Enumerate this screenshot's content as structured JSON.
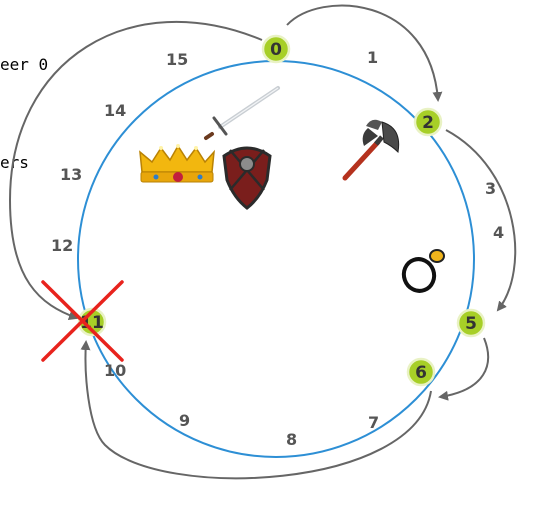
{
  "side_text": {
    "line1": "eer 0",
    "line2": "ers"
  },
  "peers": [
    "0",
    "2",
    "5",
    "6",
    "11"
  ],
  "slots": [
    "1",
    "3",
    "4",
    "7",
    "8",
    "9",
    "10",
    "12",
    "13",
    "14",
    "15"
  ],
  "failed_peer": "11",
  "colors": {
    "ring": "#2d8fd5",
    "peer_fill": "#a7cf27",
    "peer_stroke": "#e9f2c4",
    "arrow": "#666666",
    "cross": "#e8231d"
  },
  "items": [
    "sword-icon",
    "crown-icon",
    "shield-icon",
    "axe-icon",
    "ring-icon"
  ]
}
